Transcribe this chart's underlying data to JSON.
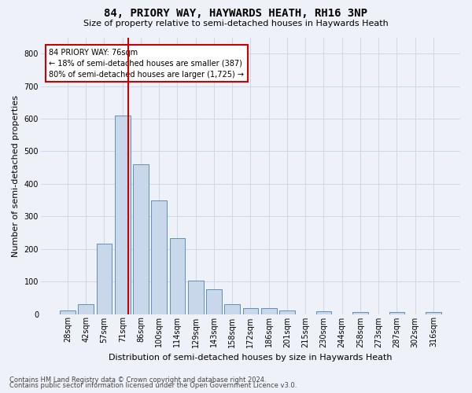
{
  "title": "84, PRIORY WAY, HAYWARDS HEATH, RH16 3NP",
  "subtitle": "Size of property relative to semi-detached houses in Haywards Heath",
  "xlabel": "Distribution of semi-detached houses by size in Haywards Heath",
  "ylabel": "Number of semi-detached properties",
  "footer1": "Contains HM Land Registry data © Crown copyright and database right 2024.",
  "footer2": "Contains public sector information licensed under the Open Government Licence v3.0.",
  "categories": [
    "28sqm",
    "42sqm",
    "57sqm",
    "71sqm",
    "86sqm",
    "100sqm",
    "114sqm",
    "129sqm",
    "143sqm",
    "158sqm",
    "172sqm",
    "186sqm",
    "201sqm",
    "215sqm",
    "230sqm",
    "244sqm",
    "258sqm",
    "273sqm",
    "287sqm",
    "302sqm",
    "316sqm"
  ],
  "values": [
    12,
    30,
    215,
    610,
    460,
    350,
    232,
    103,
    77,
    30,
    17,
    17,
    10,
    0,
    9,
    0,
    5,
    0,
    5,
    0,
    5
  ],
  "bar_color": "#c8d8ea",
  "bar_edge_color": "#6090b8",
  "vline_color": "#cc0000",
  "annotation_box_edge": "#cc0000",
  "ylim": [
    0,
    850
  ],
  "yticks": [
    0,
    100,
    200,
    300,
    400,
    500,
    600,
    700,
    800
  ],
  "grid_color": "#d0d8e8",
  "bg_color": "#eef2f8",
  "property_label": "84 PRIORY WAY: 76sqm",
  "pct_smaller": 18,
  "count_smaller": 387,
  "pct_larger": 80,
  "count_larger": 1725,
  "vline_index": 3.33,
  "title_fontsize": 10,
  "subtitle_fontsize": 8,
  "ylabel_fontsize": 8,
  "xlabel_fontsize": 8,
  "tick_fontsize": 7,
  "footer_fontsize": 6
}
